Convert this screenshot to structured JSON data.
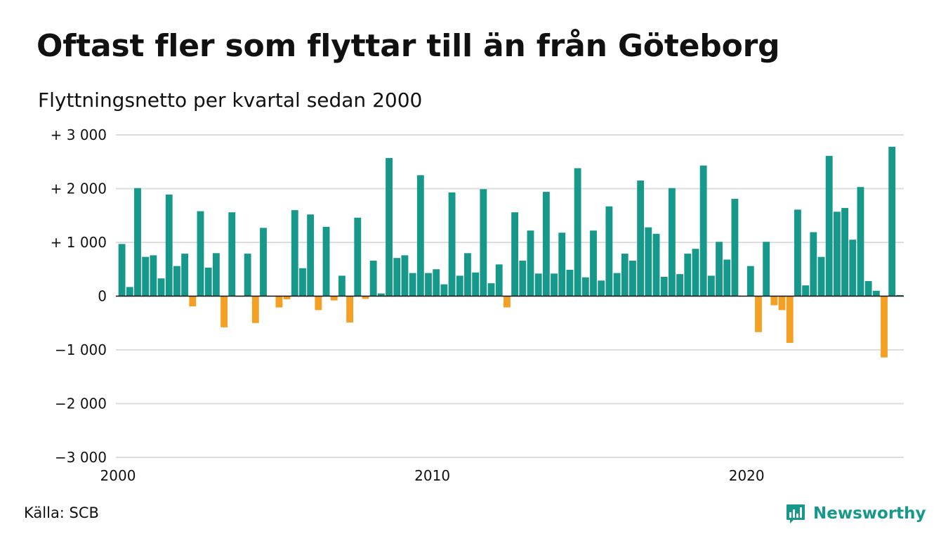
{
  "header": {
    "title": "Oftast fler som flyttar till än från Göteborg",
    "subtitle": "Flyttningsnetto per kvartal sedan 2000"
  },
  "footer": {
    "source": "Källa: SCB",
    "brand": "Newsworthy",
    "brand_icon": "bar-chart-speech-bubble-icon"
  },
  "colors": {
    "positive": "#16998a",
    "negative": "#f4a024",
    "grid": "#dddddd",
    "baseline": "#111111"
  },
  "chart_data": {
    "type": "bar",
    "title": "Oftast fler som flyttar till än från Göteborg",
    "subtitle": "Flyttningsnetto per kvartal sedan 2000",
    "x_start": 2000,
    "periods_per_year": 4,
    "ylim": [
      -3000,
      3000
    ],
    "y_ticks": [
      3000,
      2000,
      1000,
      0,
      -1000,
      -2000,
      -3000
    ],
    "y_tick_labels": [
      "+ 3 000",
      "+ 2 000",
      "+ 1 000",
      "0",
      "−1 000",
      "−2 000",
      "−3 000"
    ],
    "x_ticks": [
      2000,
      2010,
      2020
    ],
    "x_tick_labels": [
      "2000",
      "2010",
      "2020"
    ],
    "grid": true,
    "values": [
      970,
      170,
      2010,
      730,
      760,
      330,
      1890,
      560,
      790,
      -190,
      1580,
      530,
      800,
      -580,
      1560,
      -10,
      790,
      -500,
      1270,
      0,
      -210,
      -60,
      1600,
      520,
      1520,
      -260,
      1290,
      -80,
      380,
      -490,
      1460,
      -50,
      660,
      50,
      2570,
      710,
      760,
      430,
      2250,
      430,
      500,
      220,
      1930,
      380,
      800,
      440,
      1990,
      240,
      590,
      -210,
      1560,
      660,
      1220,
      420,
      1940,
      420,
      1180,
      490,
      2380,
      350,
      1220,
      290,
      1670,
      430,
      790,
      660,
      2150,
      1280,
      1160,
      360,
      2010,
      410,
      790,
      880,
      2430,
      380,
      1010,
      680,
      1810,
      0,
      560,
      -670,
      1010,
      -170,
      -260,
      -870,
      1610,
      200,
      1190,
      730,
      2610,
      1570,
      1640,
      1050,
      2030,
      280,
      100,
      -1140,
      2780,
      20
    ]
  }
}
